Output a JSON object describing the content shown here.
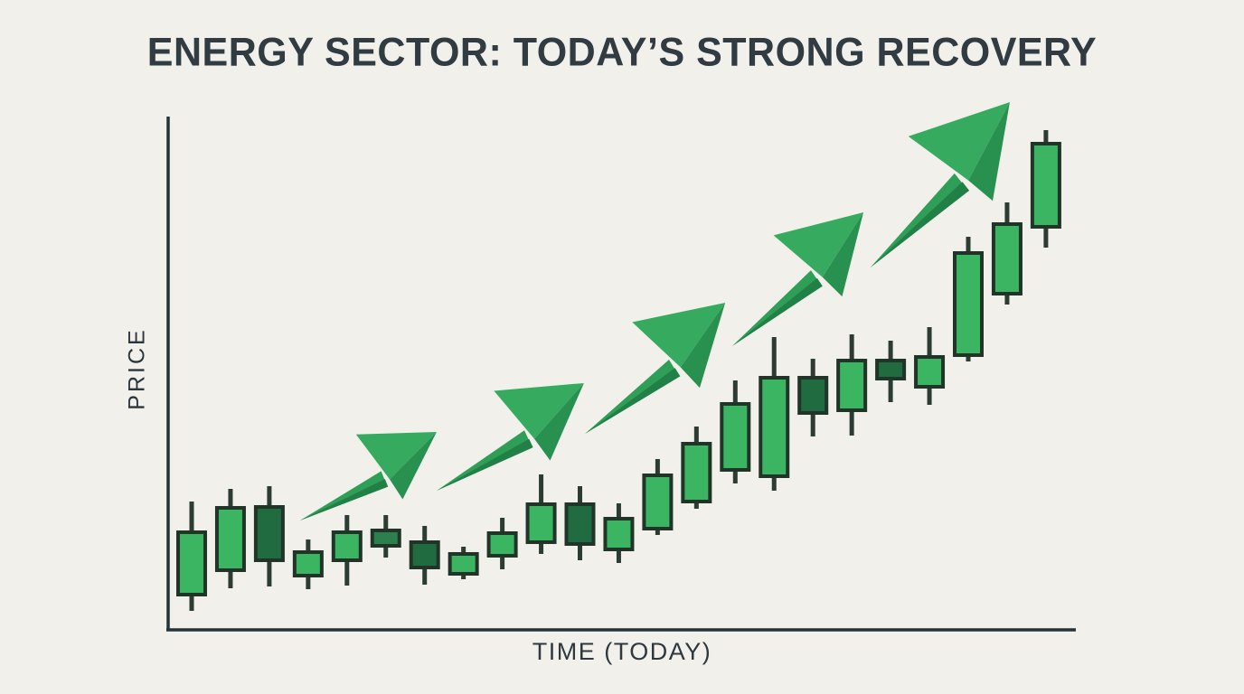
{
  "title": "ENERGY SECTOR: TODAY’S STRONG RECOVERY",
  "colors": {
    "background": "#f1f0ea",
    "title_text": "#303b42",
    "axis": "#263238",
    "axis_label_text": "#2b353b",
    "candle_light": "#3cb563",
    "candle_medium": "#2d7f4e",
    "candle_dark": "#206b3f",
    "candle_border": "#203428",
    "wick": "#2c3c33",
    "arrow_tail": "#2f9e57",
    "arrow_tail_shade": "#218045",
    "arrow_head_light": "#36ab60",
    "arrow_head_dark": "#28914f"
  },
  "chart_data": {
    "type": "candlestick",
    "title": "ENERGY SECTOR: TODAY’S STRONG RECOVERY",
    "xlabel": "TIME (TODAY)",
    "ylabel": "PRICE",
    "grid": false,
    "legend": false,
    "axis_note": "Axes carry no tick labels; values below are relative price units estimated from pixel positions (1 unit ≈ 1 px above the x-axis).",
    "ylim": [
      0,
      600
    ],
    "candles": [
      {
        "open": 39,
        "high": 142,
        "low": 21,
        "close": 108,
        "shade": "light"
      },
      {
        "open": 66,
        "high": 156,
        "low": 46,
        "close": 135,
        "shade": "light"
      },
      {
        "open": 136,
        "high": 159,
        "low": 48,
        "close": 77,
        "shade": "dark"
      },
      {
        "open": 60,
        "high": 100,
        "low": 45,
        "close": 86,
        "shade": "light"
      },
      {
        "open": 77,
        "high": 127,
        "low": 49,
        "close": 108,
        "shade": "light"
      },
      {
        "open": 110,
        "high": 127,
        "low": 80,
        "close": 93,
        "shade": "medium"
      },
      {
        "open": 97,
        "high": 115,
        "low": 50,
        "close": 69,
        "shade": "dark"
      },
      {
        "open": 62,
        "high": 92,
        "low": 56,
        "close": 84,
        "shade": "light"
      },
      {
        "open": 82,
        "high": 124,
        "low": 67,
        "close": 107,
        "shade": "light"
      },
      {
        "open": 97,
        "high": 172,
        "low": 84,
        "close": 139,
        "shade": "light"
      },
      {
        "open": 139,
        "high": 159,
        "low": 77,
        "close": 95,
        "shade": "dark"
      },
      {
        "open": 89,
        "high": 140,
        "low": 74,
        "close": 123,
        "shade": "light"
      },
      {
        "open": 112,
        "high": 189,
        "low": 105,
        "close": 171,
        "shade": "light"
      },
      {
        "open": 142,
        "high": 225,
        "low": 134,
        "close": 206,
        "shade": "light"
      },
      {
        "open": 177,
        "high": 276,
        "low": 162,
        "close": 250,
        "shade": "light"
      },
      {
        "open": 170,
        "high": 324,
        "low": 154,
        "close": 279,
        "shade": "light"
      },
      {
        "open": 279,
        "high": 300,
        "low": 214,
        "close": 240,
        "shade": "dark"
      },
      {
        "open": 243,
        "high": 327,
        "low": 215,
        "close": 298,
        "shade": "light"
      },
      {
        "open": 298,
        "high": 320,
        "low": 252,
        "close": 278,
        "shade": "dark"
      },
      {
        "open": 269,
        "high": 335,
        "low": 249,
        "close": 302,
        "shade": "light"
      },
      {
        "open": 304,
        "high": 435,
        "low": 297,
        "close": 417,
        "shade": "light"
      },
      {
        "open": 372,
        "high": 473,
        "low": 360,
        "close": 449,
        "shade": "light"
      },
      {
        "open": 446,
        "high": 553,
        "low": 423,
        "close": 538,
        "shade": "light"
      }
    ],
    "annotations": [
      {
        "type": "trend-arrow",
        "direction": "up",
        "from": {
          "x": 2.79,
          "price": 121
        },
        "to": {
          "x": 6.31,
          "price": 219
        }
      },
      {
        "type": "trend-arrow",
        "direction": "up",
        "from": {
          "x": 6.31,
          "price": 154
        },
        "to": {
          "x": 10.1,
          "price": 273
        }
      },
      {
        "type": "trend-arrow",
        "direction": "up",
        "from": {
          "x": 10.13,
          "price": 217
        },
        "to": {
          "x": 13.74,
          "price": 362
        }
      },
      {
        "type": "trend-arrow",
        "direction": "up",
        "from": {
          "x": 13.92,
          "price": 314
        },
        "to": {
          "x": 17.3,
          "price": 462
        }
      },
      {
        "type": "trend-arrow",
        "direction": "up",
        "from": {
          "x": 17.48,
          "price": 401
        },
        "to": {
          "x": 21.07,
          "price": 584
        }
      }
    ]
  }
}
